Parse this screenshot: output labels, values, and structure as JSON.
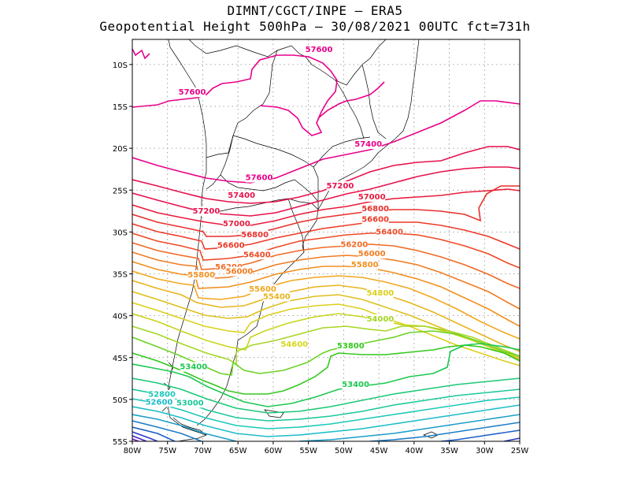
{
  "header": {
    "line1": "DIMNT/CGCT/INPE –  ERA5",
    "line2": "Geopotential Height 500hPa –  30/08/2021 00UTC fct=731h"
  },
  "chart_data": {
    "type": "contour-map",
    "variable": "Geopotential Height 500hPa",
    "units": "gpm (x10)",
    "lon_range": [
      -80,
      -25
    ],
    "lat_range": [
      -55,
      -7
    ],
    "x_ticks": [
      "80W",
      "75W",
      "70W",
      "65W",
      "60W",
      "55W",
      "50W",
      "45W",
      "40W",
      "35W",
      "30W",
      "25W"
    ],
    "y_ticks": [
      "10S",
      "15S",
      "20S",
      "25S",
      "30S",
      "35S",
      "40S",
      "45S",
      "50S",
      "55S"
    ],
    "contour_interval": 200,
    "labels": [
      {
        "text": "57600",
        "lon": -53.5,
        "lat": -8.5,
        "color": "#e8008a"
      },
      {
        "text": "57600",
        "lon": -71.5,
        "lat": -13.6,
        "color": "#e8008a"
      },
      {
        "text": "57400",
        "lon": -46.5,
        "lat": -19.8,
        "color": "#e8008a"
      },
      {
        "text": "57600",
        "lon": -62,
        "lat": -23.8,
        "color": "#e8008a"
      },
      {
        "text": "57400",
        "lon": -64.5,
        "lat": -25.9,
        "color": "#e8104c"
      },
      {
        "text": "57200",
        "lon": -50.5,
        "lat": -24.8,
        "color": "#e8104c"
      },
      {
        "text": "57000",
        "lon": -46,
        "lat": -26.1,
        "color": "#e81c3c"
      },
      {
        "text": "56800",
        "lon": -45.5,
        "lat": -27.5,
        "color": "#e8302c"
      },
      {
        "text": "57200",
        "lon": -69.5,
        "lat": -27.8,
        "color": "#e8104c"
      },
      {
        "text": "56600",
        "lon": -45.5,
        "lat": -28.8,
        "color": "#ec3a28"
      },
      {
        "text": "57000",
        "lon": -65.2,
        "lat": -29.3,
        "color": "#e81c3c"
      },
      {
        "text": "56400",
        "lon": -43.5,
        "lat": -30.3,
        "color": "#ee4a26"
      },
      {
        "text": "56800",
        "lon": -62.6,
        "lat": -30.6,
        "color": "#e8302c"
      },
      {
        "text": "56200",
        "lon": -48.5,
        "lat": -31.8,
        "color": "#f06a24"
      },
      {
        "text": "56600",
        "lon": -66,
        "lat": -31.9,
        "color": "#ec3a28"
      },
      {
        "text": "56000",
        "lon": -46,
        "lat": -32.9,
        "color": "#f07c22"
      },
      {
        "text": "56400",
        "lon": -62.3,
        "lat": -33,
        "color": "#ee4a26"
      },
      {
        "text": "55800",
        "lon": -47,
        "lat": -34.2,
        "color": "#f2901e"
      },
      {
        "text": "56200",
        "lon": -66.3,
        "lat": -34.5,
        "color": "#f06a24"
      },
      {
        "text": "56000",
        "lon": -64.8,
        "lat": -35,
        "color": "#f07c22"
      },
      {
        "text": "55800",
        "lon": -70.2,
        "lat": -35.4,
        "color": "#f2901e"
      },
      {
        "text": "55600",
        "lon": -61.5,
        "lat": -37.1,
        "color": "#f2a81e"
      },
      {
        "text": "55400",
        "lon": -59.5,
        "lat": -38,
        "color": "#e8b41e"
      },
      {
        "text": "54800",
        "lon": -44.8,
        "lat": -37.6,
        "color": "#dcd01c"
      },
      {
        "text": "54000",
        "lon": -44.8,
        "lat": -40.7,
        "color": "#a6d622"
      },
      {
        "text": "54600",
        "lon": -57,
        "lat": -43.7,
        "color": "#d4d81c"
      },
      {
        "text": "53800",
        "lon": -49,
        "lat": -43.9,
        "color": "#34c81e"
      },
      {
        "text": "53400",
        "lon": -71.3,
        "lat": -46.4,
        "color": "#1cc852"
      },
      {
        "text": "53400",
        "lon": -48.3,
        "lat": -48.5,
        "color": "#1cc852"
      },
      {
        "text": "52800",
        "lon": -75.8,
        "lat": -49.7,
        "color": "#1cc8b8"
      },
      {
        "text": "52600",
        "lon": -76.2,
        "lat": -50.6,
        "color": "#1cbcc8"
      },
      {
        "text": "53000",
        "lon": -71.8,
        "lat": -50.7,
        "color": "#1cc89a"
      }
    ]
  }
}
